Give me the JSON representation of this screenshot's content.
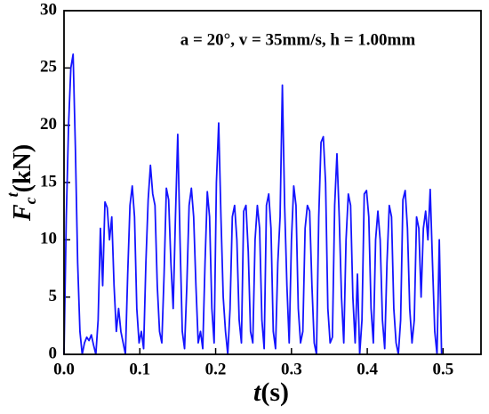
{
  "chart_data": {
    "type": "line",
    "annotation": "a = 20°, v = 35mm/s, h = 1.00mm",
    "xlabel": {
      "symbol": "t",
      "unit": "(s)"
    },
    "ylabel": {
      "symbol": "F",
      "subscript": "c",
      "superscript": "t",
      "unit": "(kN)"
    },
    "color": "#1414ff",
    "xlim": [
      0,
      0.55
    ],
    "xticks": [
      {
        "value": 0,
        "label": "0.0"
      },
      0.1,
      0.2,
      0.3,
      0.4,
      0.5
    ],
    "ylim": [
      0,
      30
    ],
    "yticks": [
      0,
      5,
      10,
      15,
      20,
      25,
      30
    ],
    "x": [
      0,
      0.003,
      0.006,
      0.009,
      0.012,
      0.015,
      0.018,
      0.021,
      0.024,
      0.027,
      0.03,
      0.033,
      0.036,
      0.039,
      0.042,
      0.045,
      0.048,
      0.051,
      0.054,
      0.057,
      0.06,
      0.063,
      0.066,
      0.069,
      0.072,
      0.075,
      0.078,
      0.081,
      0.084,
      0.087,
      0.09,
      0.093,
      0.096,
      0.099,
      0.102,
      0.105,
      0.108,
      0.111,
      0.114,
      0.117,
      0.12,
      0.123,
      0.126,
      0.129,
      0.132,
      0.135,
      0.138,
      0.141,
      0.144,
      0.147,
      0.15,
      0.153,
      0.156,
      0.159,
      0.162,
      0.165,
      0.168,
      0.171,
      0.174,
      0.177,
      0.18,
      0.183,
      0.186,
      0.189,
      0.192,
      0.195,
      0.198,
      0.201,
      0.204,
      0.207,
      0.21,
      0.213,
      0.216,
      0.219,
      0.222,
      0.225,
      0.228,
      0.231,
      0.234,
      0.237,
      0.24,
      0.243,
      0.246,
      0.249,
      0.252,
      0.255,
      0.258,
      0.261,
      0.264,
      0.267,
      0.27,
      0.273,
      0.276,
      0.279,
      0.282,
      0.285,
      0.288,
      0.291,
      0.294,
      0.297,
      0.3,
      0.303,
      0.306,
      0.309,
      0.312,
      0.315,
      0.318,
      0.321,
      0.324,
      0.327,
      0.33,
      0.333,
      0.336,
      0.339,
      0.342,
      0.345,
      0.348,
      0.351,
      0.354,
      0.357,
      0.36,
      0.363,
      0.366,
      0.369,
      0.372,
      0.375,
      0.378,
      0.381,
      0.384,
      0.387,
      0.39,
      0.393,
      0.396,
      0.399,
      0.402,
      0.405,
      0.408,
      0.411,
      0.414,
      0.417,
      0.42,
      0.423,
      0.426,
      0.429,
      0.432,
      0.435,
      0.438,
      0.441,
      0.444,
      0.447,
      0.45,
      0.453,
      0.456,
      0.459,
      0.462,
      0.465,
      0.468,
      0.471,
      0.474,
      0.477,
      0.48,
      0.483,
      0.486,
      0.489,
      0.492,
      0.495,
      0.498
    ],
    "values": [
      0,
      12,
      20,
      25,
      26.2,
      18,
      8,
      2,
      0,
      1,
      1.5,
      1.2,
      1.7,
      0.8,
      0,
      3,
      11,
      6,
      13.3,
      12.8,
      10,
      12,
      6,
      2,
      4,
      2,
      1,
      0,
      7,
      13,
      14.7,
      12,
      4,
      1,
      2,
      0.5,
      8,
      13.5,
      16.5,
      14,
      13,
      6,
      2,
      1,
      7,
      14.5,
      13.5,
      8,
      4,
      12,
      19.2,
      10,
      2,
      0.5,
      6,
      13,
      14.5,
      12,
      6,
      1,
      2,
      0.5,
      8,
      14.2,
      12,
      4,
      1,
      15,
      20.2,
      12,
      5,
      2,
      0,
      4,
      12,
      13,
      10,
      3,
      1,
      12.5,
      13,
      9,
      2,
      1,
      10,
      13,
      11,
      3,
      0.5,
      13,
      14,
      11,
      2,
      0.5,
      8,
      12,
      23.5,
      13,
      6,
      1,
      10,
      14.7,
      13,
      4,
      1,
      2,
      11,
      13,
      12.5,
      6,
      1,
      0,
      12,
      18.5,
      19,
      15,
      4,
      1,
      1.5,
      13,
      17.5,
      12,
      5,
      1,
      10,
      14,
      13,
      5,
      1,
      7,
      0,
      3,
      14,
      14.3,
      12,
      4,
      1,
      10,
      12.5,
      10,
      3,
      0.5,
      8,
      13,
      12,
      4,
      1,
      0,
      3,
      13.5,
      14.3,
      11,
      4,
      1,
      3,
      12,
      11,
      5,
      11,
      12.5,
      10,
      14.4,
      8,
      2,
      0,
      10,
      0
    ]
  }
}
